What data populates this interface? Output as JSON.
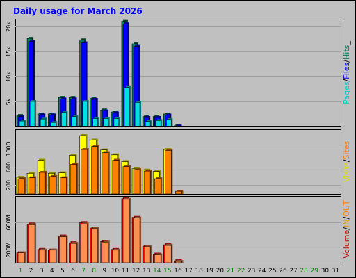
{
  "chart_data": {
    "title": "Daily usage for March 2026",
    "type": "bar",
    "categories": [
      "1",
      "2",
      "3",
      "4",
      "5",
      "6",
      "7",
      "8",
      "9",
      "10",
      "11",
      "12",
      "13",
      "14",
      "15",
      "16",
      "17",
      "18",
      "19",
      "20",
      "21",
      "22",
      "23",
      "24",
      "25",
      "26",
      "27",
      "28",
      "29",
      "30",
      "31"
    ],
    "weekend_days": [
      "1",
      "7",
      "8",
      "14",
      "15",
      "21",
      "22",
      "28",
      "29"
    ],
    "panels": [
      {
        "id": "pages-files-hits",
        "yticks": [
          {
            "value": 5000,
            "label": "5k"
          },
          {
            "value": 10000,
            "label": "10k"
          },
          {
            "value": 15000,
            "label": "15k"
          },
          {
            "value": 20000,
            "label": "20k"
          }
        ],
        "ylim": [
          0,
          21500
        ],
        "legend": [
          {
            "text": "Pages",
            "color": "#00cccc"
          },
          {
            "text": "/",
            "color": "#000000"
          },
          {
            "text": "Files",
            "color": "#0000ff"
          },
          {
            "text": "/",
            "color": "#000000"
          },
          {
            "text": "Hits",
            "color": "#00805c"
          },
          {
            "text": "_",
            "color": "#000000"
          }
        ],
        "series": [
          {
            "name": "Hits",
            "color": "#00805c",
            "values": [
              2200,
              17600,
              2500,
              2500,
              5800,
              5800,
              17300,
              5600,
              3300,
              2900,
              21000,
              16500,
              2000,
              2000,
              2500,
              150,
              0,
              0,
              0,
              0,
              0,
              0,
              0,
              0,
              0,
              0,
              0,
              0,
              0,
              0,
              0
            ]
          },
          {
            "name": "Files",
            "color": "#0000ff",
            "values": [
              2000,
              17000,
              2300,
              2300,
              5500,
              5500,
              16700,
              5400,
              3100,
              2700,
              20500,
              16000,
              1800,
              1800,
              2300,
              100,
              0,
              0,
              0,
              0,
              0,
              0,
              0,
              0,
              0,
              0,
              0,
              0,
              0,
              0,
              0
            ]
          },
          {
            "name": "Pages",
            "color": "#00e0e0",
            "values": [
              1100,
              5000,
              1500,
              800,
              2800,
              2000,
              5000,
              1600,
              1600,
              1600,
              7800,
              4800,
              1000,
              1200,
              1400,
              0,
              0,
              0,
              0,
              0,
              0,
              0,
              0,
              0,
              0,
              0,
              0,
              0,
              0,
              0,
              0
            ]
          }
        ]
      },
      {
        "id": "visits-sites",
        "yticks": [
          {
            "value": 200,
            "label": "200"
          },
          {
            "value": 600,
            "label": "600"
          },
          {
            "value": 1000,
            "label": "1000"
          }
        ],
        "ylim": [
          0,
          1440
        ],
        "legend": [
          {
            "text": "Visits",
            "color": "#e0e000"
          },
          {
            "text": "/",
            "color": "#000000"
          },
          {
            "text": "Sites",
            "color": "#ff8000"
          }
        ],
        "series": [
          {
            "name": "Visits",
            "color": "#ffff00",
            "values": [
              370,
              460,
              750,
              460,
              470,
              860,
              1300,
              1200,
              980,
              870,
              720,
              560,
              530,
              500,
              990,
              0,
              0,
              0,
              0,
              0,
              0,
              0,
              0,
              0,
              0,
              0,
              0,
              0,
              0,
              0,
              0
            ]
          },
          {
            "name": "Sites",
            "color": "#ff8000",
            "values": [
              340,
              360,
              480,
              390,
              360,
              660,
              990,
              1060,
              920,
              750,
              610,
              540,
              510,
              340,
              970,
              60,
              0,
              0,
              0,
              0,
              0,
              0,
              0,
              0,
              0,
              0,
              0,
              0,
              0,
              0,
              0
            ]
          }
        ]
      },
      {
        "id": "volume-in-out",
        "yticks": [
          {
            "value": 200,
            "label": "200M"
          },
          {
            "value": 600,
            "label": "600M"
          }
        ],
        "ylim": [
          0,
          1000
        ],
        "legend": [
          {
            "text": "Volume",
            "color": "#cc0000"
          },
          {
            "text": "/",
            "color": "#000000"
          },
          {
            "text": "IN",
            "color": "#e0a000"
          },
          {
            "text": "/",
            "color": "#000000"
          },
          {
            "text": "OUT",
            "color": "#ff8000"
          }
        ],
        "series": [
          {
            "name": "Volume",
            "color": "#ff0000",
            "values": [
              150,
              580,
              200,
              190,
              400,
              300,
              600,
              520,
              320,
              200,
              960,
              680,
              250,
              130,
              270,
              30,
              0,
              0,
              0,
              0,
              0,
              0,
              0,
              0,
              0,
              0,
              0,
              0,
              0,
              0,
              0
            ]
          },
          {
            "name": "OUT",
            "color": "#ff9050",
            "values": [
              150,
              570,
              190,
              190,
              390,
              290,
              580,
              510,
              310,
              190,
              950,
              670,
              240,
              120,
              260,
              20,
              0,
              0,
              0,
              0,
              0,
              0,
              0,
              0,
              0,
              0,
              0,
              0,
              0,
              0,
              0
            ]
          }
        ]
      }
    ]
  }
}
